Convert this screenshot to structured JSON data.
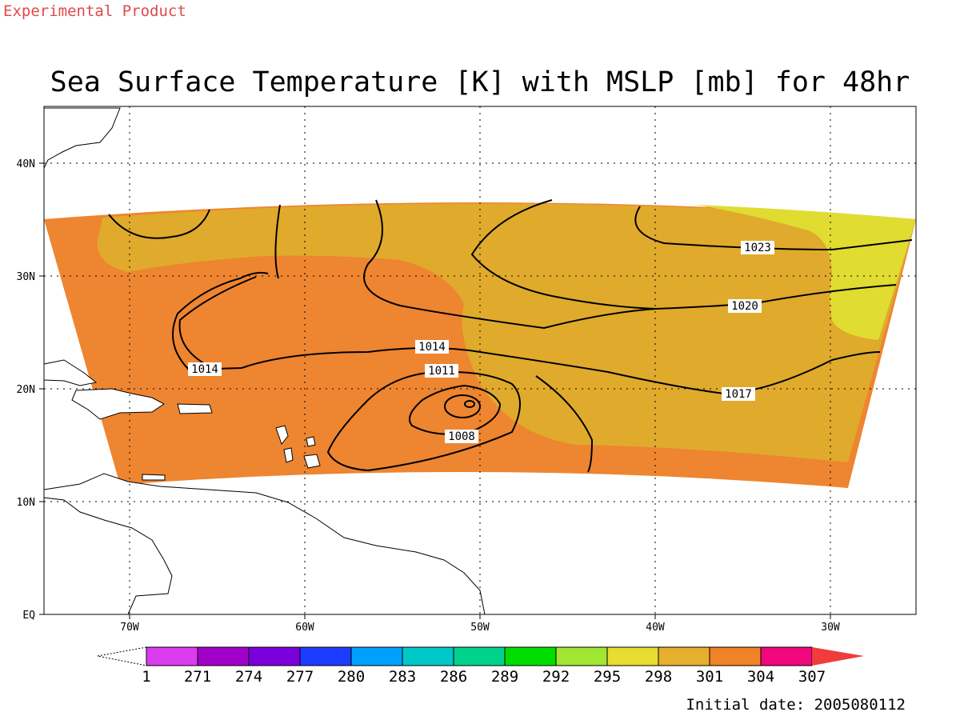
{
  "header": {
    "product_label": "Experimental Product",
    "title": "Sea Surface Temperature [K] with MSLP [mb] for 48hr"
  },
  "map": {
    "x_ticks": [
      "70W",
      "60W",
      "50W",
      "40W",
      "30W"
    ],
    "y_ticks": [
      "EQ",
      "10N",
      "20N",
      "30N",
      "40N"
    ],
    "isobar_labels": [
      "1023",
      "1020",
      "1014",
      "1014",
      "1011",
      "1008",
      "1017"
    ],
    "sst_colors": {
      "warm_301": "#e0aa2c",
      "hot_304": "#ee8530",
      "mild_298": "#e0dc32"
    }
  },
  "colorbar": {
    "labels": [
      "1",
      "271",
      "274",
      "277",
      "280",
      "283",
      "286",
      "289",
      "292",
      "295",
      "298",
      "301",
      "304",
      "307"
    ],
    "colors": [
      "#dc3cf0",
      "#a000c8",
      "#7c00dc",
      "#1e3cff",
      "#00a0ff",
      "#00c8c8",
      "#00d28c",
      "#00dc00",
      "#a0e632",
      "#e6dc32",
      "#e6af2d",
      "#f08228",
      "#f0087c",
      "#f03c3c"
    ]
  },
  "footer": {
    "initial_date": "Initial date: 2005080112"
  }
}
